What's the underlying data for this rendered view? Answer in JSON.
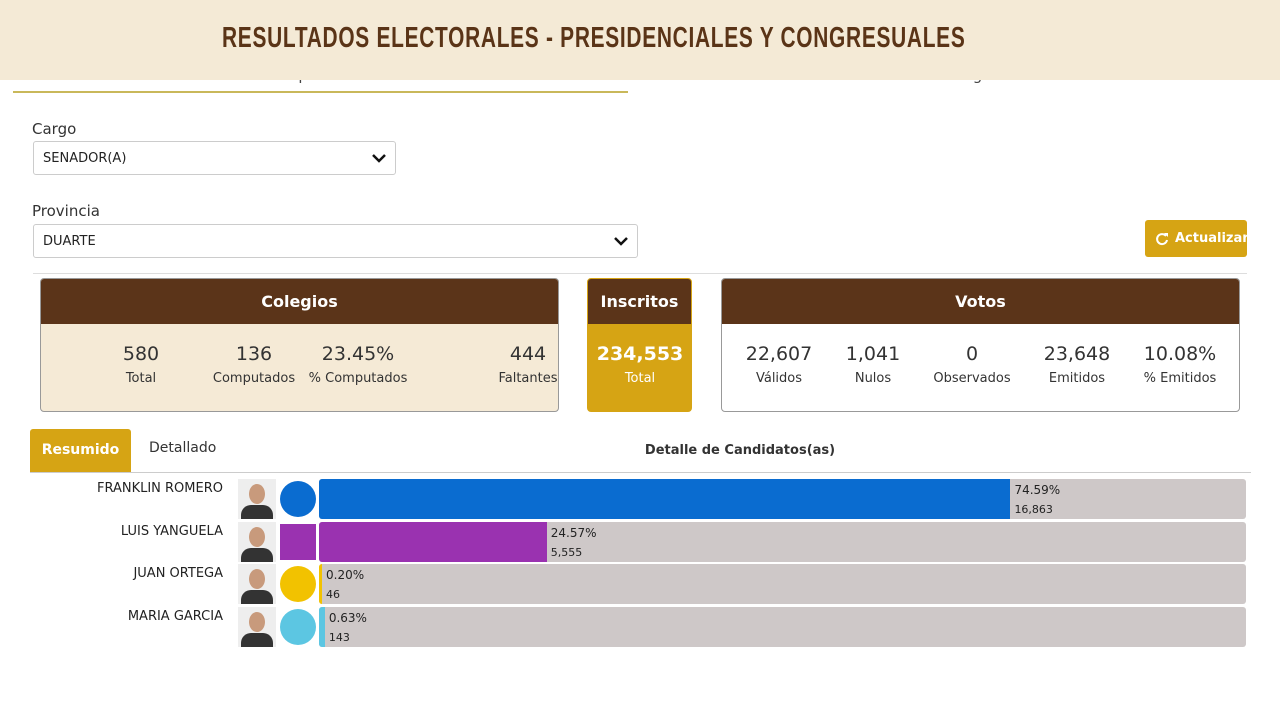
{
  "header": {
    "title": "RESULTADOS ELECTORALES - PRESIDENCIALES Y CONGRESUALES"
  },
  "tabs": [
    "Resumen por Candidatos",
    "Detalle de Colegios"
  ],
  "filters": [
    {
      "label": "Cargo",
      "value": "SENADOR(A)"
    },
    {
      "label": "Provincia",
      "value": "DUARTE"
    }
  ],
  "button": "Actualizar",
  "cards": [
    {
      "title": "Colegios",
      "items": [
        {
          "value": "580",
          "label": "Total"
        },
        {
          "value": "136",
          "label": "Computados"
        },
        {
          "value": "23.45%",
          "label": "% Computados"
        },
        {
          "value": "444",
          "label": "Faltantes"
        }
      ]
    },
    {
      "title": "Inscritos",
      "items": [
        {
          "value": "234,553",
          "label": "Total"
        }
      ]
    },
    {
      "title": "Votos",
      "items": [
        {
          "value": "22,607",
          "label": "Válidos"
        },
        {
          "value": "1,041",
          "label": "Nulos"
        },
        {
          "value": "0",
          "label": "Observados"
        },
        {
          "value": "23,648",
          "label": "Emitidos"
        },
        {
          "value": "10.08%",
          "label": "% Emitidos"
        }
      ]
    }
  ],
  "subtabs": [
    "Resumido",
    "Detallado"
  ],
  "section_title": "Detalle de Candidatos(as)",
  "candidates": [
    {
      "name": "FRANKLIN ROMERO",
      "pct": 74.59,
      "pct_label": "74.59%",
      "votes": 16863,
      "votes_label": "16,863",
      "color": "#0a6cd0"
    },
    {
      "name": "LUIS YANGUELA",
      "pct": 24.57,
      "pct_label": "24.57%",
      "votes": 5555,
      "votes_label": "5,555",
      "color": "#9a32b0"
    },
    {
      "name": "JUAN ORTEGA",
      "pct": 0.2,
      "pct_label": "0.20%",
      "votes": 46,
      "votes_label": "46",
      "color": "#f2c200"
    },
    {
      "name": "MARIA GARCIA",
      "pct": 0.63,
      "pct_label": "0.63%",
      "votes": 143,
      "votes_label": "143",
      "color": "#5cc6e2"
    }
  ]
}
